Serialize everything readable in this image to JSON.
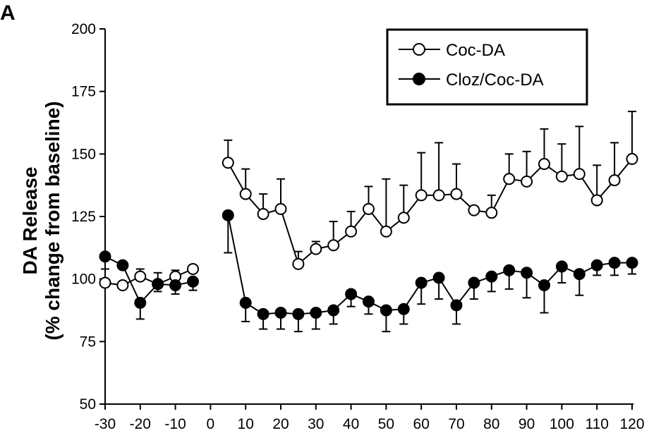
{
  "panel_label": "A",
  "chart_data": {
    "type": "line",
    "ylabel_line1": "DA Release",
    "ylabel_line2": "(% change from baseline)",
    "xlabel": "",
    "xlim": [
      -30,
      120
    ],
    "ylim": [
      50,
      200
    ],
    "xticks": [
      -30,
      -20,
      -10,
      0,
      10,
      20,
      30,
      40,
      50,
      60,
      70,
      80,
      90,
      100,
      110,
      120
    ],
    "yticks": [
      50,
      75,
      100,
      125,
      150,
      175,
      200
    ],
    "legend_position": "top-right",
    "series": [
      {
        "name": "Coc-DA",
        "marker": "open-circle",
        "color": "#000000",
        "segments": [
          {
            "x": [
              -30,
              -25,
              -20,
              -15,
              -10,
              -5
            ],
            "y": [
              98.5,
              97.5,
              101,
              98,
              101,
              104
            ],
            "err": [
              0,
              0,
              3,
              4.5,
              2.5,
              0
            ]
          },
          {
            "x": [
              5,
              10,
              15,
              20,
              25,
              30,
              35,
              40,
              45,
              50,
              55,
              60,
              65,
              70,
              75,
              80,
              85,
              90,
              95,
              100,
              105,
              110,
              115,
              120
            ],
            "y": [
              146.5,
              134,
              126,
              128,
              106,
              112,
              113.5,
              119,
              128,
              119,
              124.5,
              133.5,
              133.5,
              134,
              127.5,
              126.5,
              140,
              139,
              146,
              141,
              142,
              131.5,
              139.5,
              148
            ],
            "err": [
              9,
              10,
              8,
              12,
              5,
              3,
              9.5,
              8,
              9,
              21,
              13,
              17,
              21,
              12,
              0,
              7,
              10,
              12,
              14,
              13,
              19,
              14,
              15,
              19
            ]
          }
        ]
      },
      {
        "name": "Cloz/Coc-DA",
        "marker": "filled-circle",
        "color": "#000000",
        "segments": [
          {
            "x": [
              -30,
              -25,
              -20,
              -15,
              -10,
              -5
            ],
            "y": [
              109,
              105.5,
              90.5,
              98,
              97.5,
              99
            ],
            "err": [
              5,
              0,
              6.5,
              3,
              3.5,
              3.5
            ]
          },
          {
            "x": [
              5,
              10,
              15,
              20,
              25,
              30,
              35,
              40,
              45,
              50,
              55,
              60,
              65,
              70,
              75,
              80,
              85,
              90,
              95,
              100,
              105,
              110,
              115,
              120
            ],
            "y": [
              125.5,
              90.5,
              86,
              86.5,
              86,
              86.5,
              87.5,
              94,
              91,
              87.5,
              88,
              98.5,
              100.5,
              89.5,
              98.5,
              101,
              103.5,
              102.5,
              97.5,
              105,
              102,
              105.5,
              106.5,
              106.5
            ],
            "err": [
              15,
              7.5,
              6,
              6.5,
              7,
              6.5,
              5.5,
              5,
              5,
              8.5,
              6,
              8.5,
              8.5,
              7.5,
              6.5,
              6,
              7.5,
              10,
              11,
              6.5,
              8.5,
              4,
              5,
              4.5
            ]
          }
        ]
      }
    ]
  }
}
